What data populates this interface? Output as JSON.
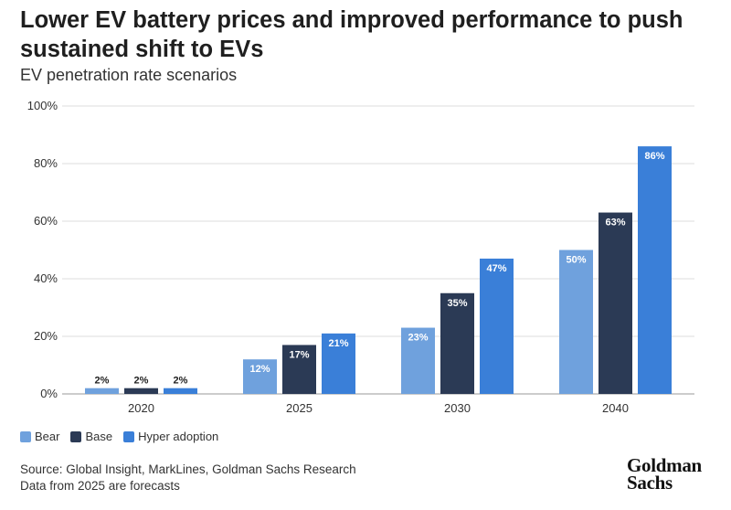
{
  "title": "Lower EV battery prices and improved performance to push sustained shift to EVs",
  "subtitle": "EV penetration rate scenarios",
  "colors": {
    "Bear": "#6fa1dd",
    "Base": "#2b3a55",
    "Hyper adoption": "#3a7fd8",
    "grid": "#dddddd"
  },
  "chart_data": {
    "type": "bar",
    "categories": [
      "2020",
      "2025",
      "2030",
      "2040"
    ],
    "series": [
      {
        "name": "Bear",
        "values": [
          2,
          12,
          23,
          50
        ]
      },
      {
        "name": "Base",
        "values": [
          2,
          17,
          35,
          63
        ]
      },
      {
        "name": "Hyper adoption",
        "values": [
          2,
          21,
          47,
          86
        ]
      }
    ],
    "data_labels": [
      [
        "2%",
        "12%",
        "23%",
        "50%"
      ],
      [
        "2%",
        "17%",
        "35%",
        "63%"
      ],
      [
        "2%",
        "21%",
        "47%",
        "86%"
      ]
    ],
    "ylim": [
      0,
      100
    ],
    "yticks": [
      "0%",
      "20%",
      "40%",
      "60%",
      "80%",
      "100%"
    ],
    "ytick_values": [
      0,
      20,
      40,
      60,
      80,
      100
    ],
    "grid": true,
    "legend_position": "bottom-left"
  },
  "footer": {
    "source": "Source: Global Insight, MarkLines, Goldman Sachs Research",
    "note": "Data from 2025 are forecasts"
  },
  "logo": {
    "line1": "Goldman",
    "line2": "Sachs"
  }
}
